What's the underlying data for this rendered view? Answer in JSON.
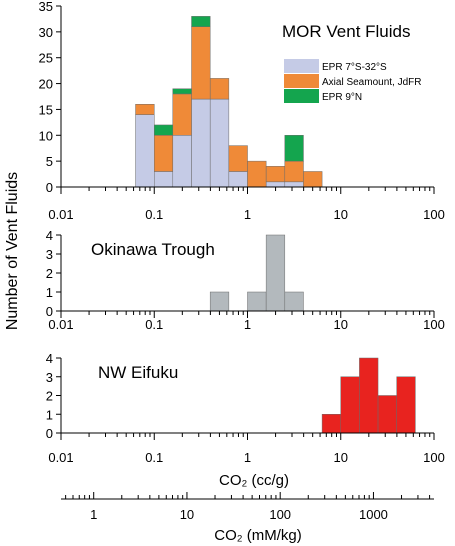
{
  "y_axis_label": "Number of Vent Fluids",
  "co2_unit_bottom": "CO₂ (mM/kg)",
  "colors": {
    "epr_7_32": "#c5cbe6",
    "axial": "#ef8a38",
    "epr_9n": "#14a54e",
    "okinawa": "#b3b9bd",
    "nw_eifuku": "#e8231f"
  },
  "chart_data": [
    {
      "type": "bar",
      "stacked": true,
      "x_scale": "log",
      "title": "MOR Vent Fluids",
      "xlim": [
        0.01,
        100
      ],
      "ylim": [
        0,
        35
      ],
      "y_ticks": [
        0,
        5,
        10,
        15,
        20,
        25,
        30,
        35
      ],
      "x_ticks": [
        0.01,
        0.1,
        1,
        10,
        100
      ],
      "x_tick_labels": [
        "0.01",
        "0.1",
        "1",
        "10",
        "100"
      ],
      "bin_edges": [
        0.063,
        0.1,
        0.158,
        0.251,
        0.398,
        0.631,
        1.0,
        1.585,
        2.512,
        3.981,
        6.31
      ],
      "legend_position": "top-right",
      "series": [
        {
          "name": "EPR 7°S-32°S",
          "values": [
            14,
            3,
            10,
            17,
            17,
            3,
            0,
            1,
            1,
            0
          ]
        },
        {
          "name": "Axial Seamount, JdFR",
          "values": [
            2,
            7,
            8,
            14,
            4,
            5,
            5,
            3,
            4,
            3
          ]
        },
        {
          "name": "EPR 9°N",
          "values": [
            0,
            2,
            1,
            2,
            0,
            0,
            0,
            0,
            5,
            0
          ]
        }
      ]
    },
    {
      "type": "bar",
      "x_scale": "log",
      "title": "Okinawa Trough",
      "xlim": [
        0.01,
        100
      ],
      "ylim": [
        0,
        4
      ],
      "y_ticks": [
        0,
        1,
        2,
        3,
        4
      ],
      "x_ticks": [
        0.01,
        0.1,
        1,
        10,
        100
      ],
      "x_tick_labels": [
        "0.01",
        "0.1",
        "1",
        "10",
        "100"
      ],
      "bin_edges": [
        0.398,
        0.631,
        1.0,
        1.585,
        2.512,
        3.981
      ],
      "values": [
        1,
        0,
        1,
        4,
        1
      ]
    },
    {
      "type": "bar",
      "x_scale": "log",
      "title": "NW Eifuku",
      "xlabel": "CO₂ (cc/g)",
      "xlim": [
        0.01,
        100
      ],
      "ylim": [
        0,
        4
      ],
      "y_ticks": [
        0,
        1,
        2,
        3,
        4
      ],
      "x_ticks": [
        0.01,
        0.1,
        1,
        10,
        100
      ],
      "x_tick_labels": [
        "0.01",
        "0.1",
        "1",
        "10",
        "100"
      ],
      "bin_edges": [
        6.31,
        10.0,
        15.85,
        25.12,
        39.81,
        63.1
      ],
      "values": [
        1,
        3,
        4,
        2,
        3
      ]
    }
  ],
  "secondary_axis": {
    "label": "CO₂ (mM/kg)",
    "x_scale": "log",
    "xlim": [
      0.446,
      4460
    ],
    "major_ticks": [
      1,
      10,
      100,
      1000
    ],
    "major_tick_labels": [
      "1",
      "10",
      "100",
      "1000"
    ]
  }
}
